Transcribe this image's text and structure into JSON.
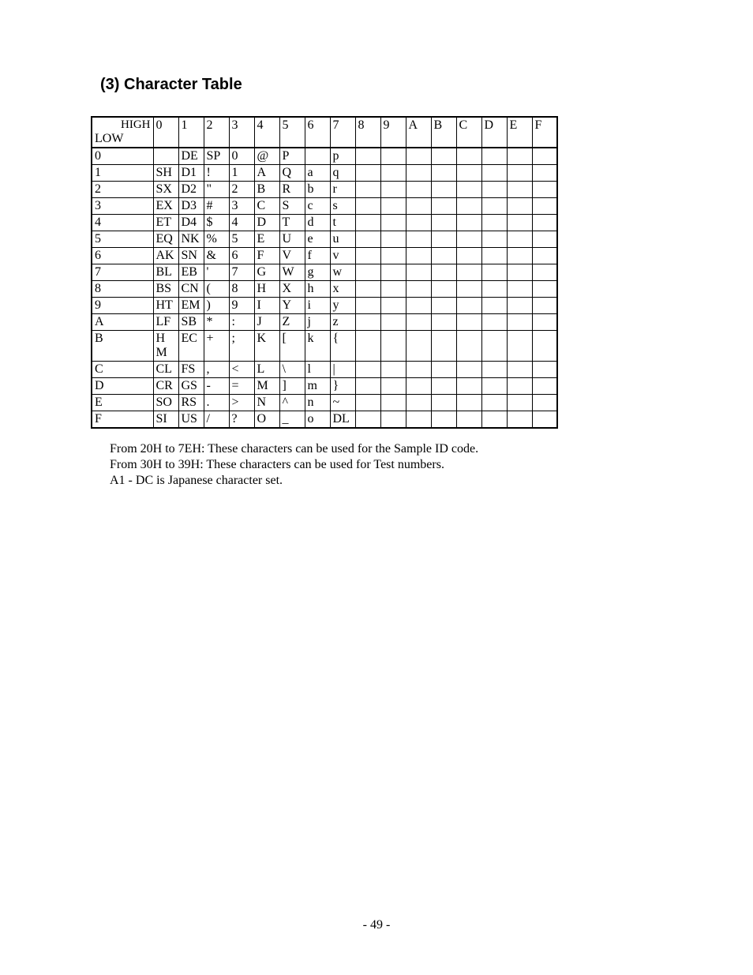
{
  "title": "(3) Character Table",
  "header_top": "HIGH",
  "header_bottom": "LOW",
  "columns": [
    "0",
    "1",
    "2",
    "3",
    "4",
    "5",
    "6",
    "7",
    "8",
    "9",
    "A",
    "B",
    "C",
    "D",
    "E",
    "F"
  ],
  "rows": [
    {
      "hdr": "0",
      "cells": [
        "",
        "DE",
        "SP",
        "0",
        "@",
        "P",
        "",
        "p",
        "",
        "",
        "",
        "",
        "",
        "",
        "",
        ""
      ]
    },
    {
      "hdr": "1",
      "cells": [
        "SH",
        "D1",
        "!",
        "1",
        "A",
        "Q",
        "a",
        "q",
        "",
        "",
        "",
        "",
        "",
        "",
        "",
        ""
      ]
    },
    {
      "hdr": "2",
      "cells": [
        "SX",
        "D2",
        "\"",
        "2",
        "B",
        "R",
        "b",
        "r",
        "",
        "",
        "",
        "",
        "",
        "",
        "",
        ""
      ]
    },
    {
      "hdr": "3",
      "cells": [
        "EX",
        "D3",
        "#",
        "3",
        "C",
        "S",
        "c",
        "s",
        "",
        "",
        "",
        "",
        "",
        "",
        "",
        ""
      ]
    },
    {
      "hdr": "4",
      "cells": [
        "ET",
        "D4",
        "$",
        "4",
        "D",
        "T",
        "d",
        "t",
        "",
        "",
        "",
        "",
        "",
        "",
        "",
        ""
      ]
    },
    {
      "hdr": "5",
      "cells": [
        "EQ",
        "NK",
        "%",
        "5",
        "E",
        "U",
        "e",
        "u",
        "",
        "",
        "",
        "",
        "",
        "",
        "",
        ""
      ]
    },
    {
      "hdr": "6",
      "cells": [
        "AK",
        "SN",
        "&",
        "6",
        "F",
        "V",
        "f",
        "v",
        "",
        "",
        "",
        "",
        "",
        "",
        "",
        ""
      ]
    },
    {
      "hdr": "7",
      "cells": [
        "BL",
        "EB",
        "'",
        "7",
        "G",
        "W",
        "g",
        "w",
        "",
        "",
        "",
        "",
        "",
        "",
        "",
        ""
      ]
    },
    {
      "hdr": "8",
      "cells": [
        "BS",
        "CN",
        "(",
        "8",
        "H",
        "X",
        "h",
        "x",
        "",
        "",
        "",
        "",
        "",
        "",
        "",
        ""
      ]
    },
    {
      "hdr": "9",
      "cells": [
        "HT",
        "EM",
        ")",
        "9",
        "I",
        "Y",
        "i",
        "y",
        "",
        "",
        "",
        "",
        "",
        "",
        "",
        ""
      ]
    },
    {
      "hdr": "A",
      "cells": [
        "LF",
        "SB",
        "*",
        ":",
        "J",
        "Z",
        "j",
        "z",
        "",
        "",
        "",
        "",
        "",
        "",
        "",
        ""
      ]
    },
    {
      "hdr": "B",
      "cells": [
        "HM",
        "EC",
        "+",
        ";",
        "K",
        "[",
        "k",
        "{",
        "",
        "",
        "",
        "",
        "",
        "",
        "",
        ""
      ]
    },
    {
      "hdr": "C",
      "cells": [
        "CL",
        "FS",
        ",",
        "<",
        "L",
        "\\",
        "l",
        "|",
        "",
        "",
        "",
        "",
        "",
        "",
        "",
        ""
      ]
    },
    {
      "hdr": "D",
      "cells": [
        "CR",
        "GS",
        "-",
        "=",
        "M",
        "]",
        "m",
        "}",
        "",
        "",
        "",
        "",
        "",
        "",
        "",
        ""
      ]
    },
    {
      "hdr": "E",
      "cells": [
        "SO",
        "RS",
        ".",
        ">",
        "N",
        "^",
        "n",
        "~",
        "",
        "",
        "",
        "",
        "",
        "",
        "",
        ""
      ]
    },
    {
      "hdr": "F",
      "cells": [
        "SI",
        "US",
        "/",
        "?",
        "O",
        "_",
        "o",
        "DL",
        "",
        "",
        "",
        "",
        "",
        "",
        "",
        ""
      ]
    }
  ],
  "special_row_b_col0": [
    "H",
    "M"
  ],
  "notes": [
    "From 20H to 7EH: These characters can be used for the Sample ID code.",
    "From 30H to 39H: These characters can be used for Test numbers.",
    "A1 - DC is Japanese character set."
  ],
  "page_number": "- 49 -",
  "colors": {
    "background": "#ffffff",
    "text": "#000000",
    "border": "#000000"
  },
  "fonts": {
    "title_family": "Arial",
    "title_size_pt": 15,
    "body_family": "Times New Roman",
    "body_size_pt": 12
  }
}
